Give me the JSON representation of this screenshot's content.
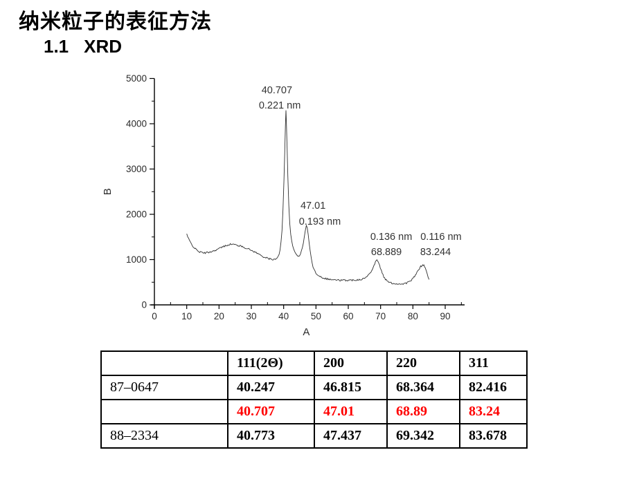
{
  "slide": {
    "title": "纳米粒子的表征方法",
    "subtitle_number": "1.1",
    "subtitle_text": "XRD"
  },
  "chart_data": {
    "type": "line",
    "title": "",
    "xlabel": "A",
    "ylabel": "B",
    "xlim": [
      0,
      96
    ],
    "ylim": [
      0,
      5000
    ],
    "x_ticks": [
      0,
      10,
      20,
      30,
      40,
      50,
      60,
      70,
      80,
      90
    ],
    "y_ticks": [
      0,
      1000,
      2000,
      3000,
      4000,
      5000
    ],
    "grid": false,
    "legend": "none",
    "line_color": "#2e2e2e",
    "peaks": [
      {
        "two_theta": 40.707,
        "d_spacing_nm": "0.221 nm",
        "intensity": 4300
      },
      {
        "two_theta": 47.01,
        "d_spacing_nm": "0.193 nm",
        "intensity": 1750
      },
      {
        "two_theta": 68.889,
        "d_spacing_nm": "0.136 nm",
        "intensity": 1000
      },
      {
        "two_theta": 83.244,
        "d_spacing_nm": "0.116 nm",
        "intensity": 885
      }
    ],
    "annotations": [
      {
        "text": "40.707",
        "x": 37.9,
        "y": 4750
      },
      {
        "text": "0.221 nm",
        "x": 38.8,
        "y": 4410
      },
      {
        "text": "47.01",
        "x": 49.1,
        "y": 2200
      },
      {
        "text": "0.193 nm",
        "x": 51.2,
        "y": 1850
      },
      {
        "text": "0.136 nm",
        "x": 73.3,
        "y": 1510
      },
      {
        "text": "68.889",
        "x": 71.8,
        "y": 1175
      },
      {
        "text": "0.116 nm",
        "x": 88.7,
        "y": 1510
      },
      {
        "text": "83.244",
        "x": 87.0,
        "y": 1175
      }
    ],
    "series": [
      {
        "name": "XRD trace",
        "points": [
          [
            10,
            1570
          ],
          [
            10.3,
            1500
          ],
          [
            10.6,
            1455
          ],
          [
            11,
            1400
          ],
          [
            11.5,
            1340
          ],
          [
            12,
            1290
          ],
          [
            12.5,
            1250
          ],
          [
            13,
            1215
          ],
          [
            13.5,
            1190
          ],
          [
            14,
            1170
          ],
          [
            14.5,
            1160
          ],
          [
            15,
            1150
          ],
          [
            15.5,
            1148
          ],
          [
            16,
            1150
          ],
          [
            16.5,
            1155
          ],
          [
            17,
            1165
          ],
          [
            17.5,
            1175
          ],
          [
            18,
            1185
          ],
          [
            18.5,
            1195
          ],
          [
            19,
            1210
          ],
          [
            19.5,
            1225
          ],
          [
            20,
            1245
          ],
          [
            20.5,
            1260
          ],
          [
            21,
            1275
          ],
          [
            21.5,
            1290
          ],
          [
            22,
            1305
          ],
          [
            22.5,
            1318
          ],
          [
            23,
            1330
          ],
          [
            23.5,
            1338
          ],
          [
            24,
            1340
          ],
          [
            24.5,
            1335
          ],
          [
            25,
            1328
          ],
          [
            25.5,
            1320
          ],
          [
            26,
            1310
          ],
          [
            26.5,
            1300
          ],
          [
            27,
            1290
          ],
          [
            27.5,
            1278
          ],
          [
            28,
            1265
          ],
          [
            28.5,
            1252
          ],
          [
            29,
            1238
          ],
          [
            29.5,
            1222
          ],
          [
            30,
            1205
          ],
          [
            30.5,
            1188
          ],
          [
            31,
            1170
          ],
          [
            31.5,
            1152
          ],
          [
            32,
            1133
          ],
          [
            32.5,
            1113
          ],
          [
            33,
            1093
          ],
          [
            33.5,
            1073
          ],
          [
            34,
            1055
          ],
          [
            34.5,
            1040
          ],
          [
            35,
            1028
          ],
          [
            35.5,
            1018
          ],
          [
            36,
            1010
          ],
          [
            36.5,
            1005
          ],
          [
            37,
            1003
          ],
          [
            37.5,
            1005
          ],
          [
            38,
            1030
          ],
          [
            38.3,
            1060
          ],
          [
            38.6,
            1120
          ],
          [
            38.9,
            1230
          ],
          [
            39.2,
            1400
          ],
          [
            39.5,
            1650
          ],
          [
            39.8,
            2100
          ],
          [
            40.1,
            2750
          ],
          [
            40.35,
            3400
          ],
          [
            40.55,
            3950
          ],
          [
            40.707,
            4300
          ],
          [
            40.85,
            4050
          ],
          [
            41.05,
            3500
          ],
          [
            41.3,
            2850
          ],
          [
            41.6,
            2200
          ],
          [
            41.9,
            1800
          ],
          [
            42.2,
            1550
          ],
          [
            42.5,
            1400
          ],
          [
            42.8,
            1300
          ],
          [
            43.1,
            1230
          ],
          [
            43.4,
            1180
          ],
          [
            43.7,
            1140
          ],
          [
            44,
            1110
          ],
          [
            44.3,
            1090
          ],
          [
            44.6,
            1085
          ],
          [
            44.9,
            1095
          ],
          [
            45.2,
            1125
          ],
          [
            45.5,
            1180
          ],
          [
            45.8,
            1260
          ],
          [
            46.1,
            1370
          ],
          [
            46.4,
            1500
          ],
          [
            46.7,
            1640
          ],
          [
            47.01,
            1750
          ],
          [
            47.3,
            1700
          ],
          [
            47.6,
            1560
          ],
          [
            47.9,
            1380
          ],
          [
            48.2,
            1200
          ],
          [
            48.5,
            1050
          ],
          [
            48.8,
            930
          ],
          [
            49.1,
            840
          ],
          [
            49.4,
            780
          ],
          [
            49.7,
            735
          ],
          [
            50,
            705
          ],
          [
            50.5,
            668
          ],
          [
            51,
            640
          ],
          [
            51.5,
            620
          ],
          [
            52,
            605
          ],
          [
            52.5,
            592
          ],
          [
            53,
            582
          ],
          [
            53.5,
            574
          ],
          [
            54,
            567
          ],
          [
            54.5,
            561
          ],
          [
            55,
            556
          ],
          [
            56,
            550
          ],
          [
            57,
            546
          ],
          [
            58,
            543
          ],
          [
            59,
            542
          ],
          [
            60,
            543
          ],
          [
            61,
            546
          ],
          [
            62,
            550
          ],
          [
            63,
            556
          ],
          [
            64,
            566
          ],
          [
            64.5,
            575
          ],
          [
            65,
            590
          ],
          [
            65.5,
            610
          ],
          [
            66,
            640
          ],
          [
            66.5,
            680
          ],
          [
            67,
            735
          ],
          [
            67.5,
            805
          ],
          [
            68,
            880
          ],
          [
            68.4,
            945
          ],
          [
            68.889,
            1000
          ],
          [
            69.3,
            955
          ],
          [
            69.7,
            870
          ],
          [
            70.1,
            780
          ],
          [
            70.5,
            700
          ],
          [
            71,
            620
          ],
          [
            71.5,
            565
          ],
          [
            72,
            528
          ],
          [
            72.5,
            505
          ],
          [
            73,
            490
          ],
          [
            73.5,
            480
          ],
          [
            74,
            473
          ],
          [
            74.5,
            468
          ],
          [
            75,
            465
          ],
          [
            75.5,
            463
          ],
          [
            76,
            462
          ],
          [
            76.5,
            463
          ],
          [
            77,
            466
          ],
          [
            77.5,
            472
          ],
          [
            78,
            482
          ],
          [
            78.5,
            497
          ],
          [
            79,
            518
          ],
          [
            79.5,
            545
          ],
          [
            80,
            580
          ],
          [
            80.5,
            625
          ],
          [
            81,
            680
          ],
          [
            81.5,
            740
          ],
          [
            82,
            800
          ],
          [
            82.4,
            845
          ],
          [
            82.8,
            872
          ],
          [
            83.244,
            885
          ],
          [
            83.6,
            850
          ],
          [
            84,
            780
          ],
          [
            84.4,
            690
          ],
          [
            84.7,
            620
          ],
          [
            85,
            560
          ]
        ]
      }
    ]
  },
  "table": {
    "headers": [
      "",
      "111(2Θ)",
      "200",
      "220",
      "311"
    ],
    "rows": [
      {
        "label": "87–0647",
        "values": [
          "40.247",
          "46.815",
          "68.364",
          "82.416"
        ],
        "highlight": false
      },
      {
        "label": "",
        "values": [
          "40.707",
          "47.01",
          "68.89",
          "83.24"
        ],
        "highlight": true
      },
      {
        "label": "88–2334",
        "values": [
          "40.773",
          "47.437",
          "69.342",
          "83.678"
        ],
        "highlight": false
      }
    ],
    "highlight_color": "#ff0000"
  }
}
